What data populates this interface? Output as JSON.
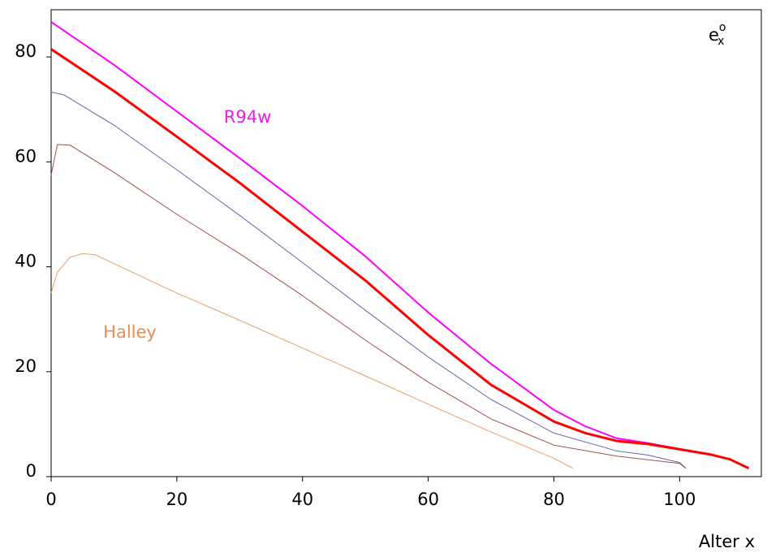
{
  "chart_data": {
    "type": "line",
    "xlabel": "Alter x",
    "ylabel": {
      "base": "e",
      "sup": "o",
      "sub": "x"
    },
    "xlim": [
      0,
      113
    ],
    "ylim": [
      0,
      89
    ],
    "xticks": [
      0,
      20,
      40,
      60,
      80,
      100
    ],
    "yticks": [
      0,
      20,
      40,
      60,
      80
    ],
    "grid": false,
    "annotations": [
      {
        "text": "R94w",
        "color": "#e81ee8"
      },
      {
        "text": "Halley",
        "color": "#f08a4b"
      }
    ],
    "series": [
      {
        "name": "R94w",
        "color": "#ff00ff",
        "width": 2,
        "x": [
          0,
          10,
          20,
          30,
          40,
          50,
          60,
          70,
          80,
          85,
          90,
          95,
          100,
          105,
          108,
          111
        ],
        "values": [
          86.7,
          78.5,
          69.6,
          60.7,
          51.6,
          42.0,
          31.3,
          21.5,
          12.7,
          9.6,
          7.3,
          6.4,
          5.3,
          4.2,
          3.3,
          1.6
        ]
      },
      {
        "color": "#ff0000",
        "width": 3,
        "x": [
          0,
          10,
          20,
          30,
          40,
          50,
          60,
          70,
          80,
          85,
          90,
          95,
          100,
          105,
          108,
          111
        ],
        "values": [
          81.5,
          73.5,
          64.8,
          56.0,
          46.7,
          37.4,
          27.0,
          17.5,
          10.5,
          8.3,
          6.8,
          6.2,
          5.2,
          4.2,
          3.3,
          1.6
        ]
      },
      {
        "color": "#6666aa",
        "width": 1,
        "x": [
          0,
          2,
          10,
          20,
          30,
          40,
          50,
          60,
          70,
          80,
          90,
          95,
          100,
          101
        ],
        "values": [
          73.3,
          72.8,
          67.0,
          58.5,
          49.8,
          40.8,
          31.7,
          22.8,
          14.7,
          8.3,
          4.9,
          4.1,
          2.7,
          1.6
        ]
      },
      {
        "color": "#a0524d",
        "width": 1,
        "x": [
          0,
          1,
          3,
          10,
          20,
          30,
          40,
          50,
          60,
          70,
          80,
          90,
          100,
          101
        ],
        "values": [
          57.5,
          63.3,
          63.2,
          58.0,
          50.0,
          42.5,
          34.5,
          26.0,
          18.0,
          11.0,
          6.0,
          3.9,
          2.5,
          1.6
        ]
      },
      {
        "name": "Halley",
        "color": "#e8a060",
        "width": 1,
        "x": [
          0,
          1,
          3,
          5,
          7,
          10,
          20,
          30,
          40,
          50,
          60,
          70,
          80,
          83
        ],
        "values": [
          35.0,
          39.0,
          41.8,
          42.5,
          42.3,
          40.6,
          35.0,
          29.8,
          24.5,
          19.2,
          13.8,
          8.5,
          3.5,
          1.6
        ]
      }
    ]
  }
}
